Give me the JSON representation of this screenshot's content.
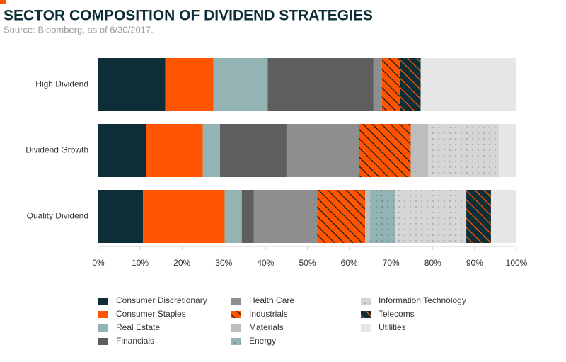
{
  "chart_data": {
    "type": "stacked-bar-horizontal",
    "title": "SECTOR COMPOSITION OF DIVIDEND STRATEGIES",
    "subtitle": "Source: Bloomberg, as of 6/30/2017.",
    "categories": [
      "High Dividend",
      "Dividend Growth",
      "Quality Dividend"
    ],
    "xlim": [
      0,
      100
    ],
    "xticks": [
      {
        "value": 0,
        "label": "0%"
      },
      {
        "value": 10,
        "label": "10%"
      },
      {
        "value": 20,
        "label": "20%"
      },
      {
        "value": 30,
        "label": "30%"
      },
      {
        "value": 40,
        "label": "40%"
      },
      {
        "value": 50,
        "label": "50%"
      },
      {
        "value": 60,
        "label": "60%"
      },
      {
        "value": 70,
        "label": "70%"
      },
      {
        "value": 80,
        "label": "80%"
      },
      {
        "value": 90,
        "label": "90%"
      },
      {
        "value": 100,
        "label": "100%"
      }
    ],
    "series": [
      {
        "name": "Consumer Discretionary",
        "color": "#0d2e36",
        "values": [
          16,
          11.5,
          10.7
        ]
      },
      {
        "name": "Consumer Staples",
        "color": "#ff5500",
        "values": [
          11.5,
          13.5,
          19.5
        ]
      },
      {
        "name": "Real Estate",
        "color": "#94b3b3",
        "values": [
          13,
          4.1,
          4.1
        ]
      },
      {
        "name": "Financials",
        "color": "#5e5e5e",
        "values": [
          25.3,
          15.9,
          2.9
        ]
      },
      {
        "name": "Health Care",
        "color": "#8e8e8e",
        "values": [
          2,
          17.3,
          15.1
        ]
      },
      {
        "name": "Industrials",
        "color": "#ff5500",
        "pattern": {
          "type": "hatch",
          "color": "#1a1a1a"
        },
        "values": [
          4.4,
          12.4,
          11.5
        ]
      },
      {
        "name": "Materials",
        "color": "#bdbdbd",
        "values": [
          0,
          4.2,
          1.2
        ]
      },
      {
        "name": "Energy",
        "color": "#94b3b3",
        "pattern": {
          "type": "dots",
          "color": "#6a8a8a"
        },
        "values": [
          0,
          0,
          5.9
        ]
      },
      {
        "name": "Information Technology",
        "color": "#d6d6d6",
        "pattern": {
          "type": "dots",
          "color": "#a8a8a8"
        },
        "values": [
          0,
          16.9,
          17.1
        ]
      },
      {
        "name": "Telecoms",
        "color": "#0d2e36",
        "pattern": {
          "type": "hatch",
          "color": "#ff5500"
        },
        "values": [
          4.9,
          0,
          5.9
        ]
      },
      {
        "name": "Utilities",
        "color": "#e6e6e6",
        "values": [
          22.9,
          4.2,
          6.1
        ]
      }
    ]
  }
}
